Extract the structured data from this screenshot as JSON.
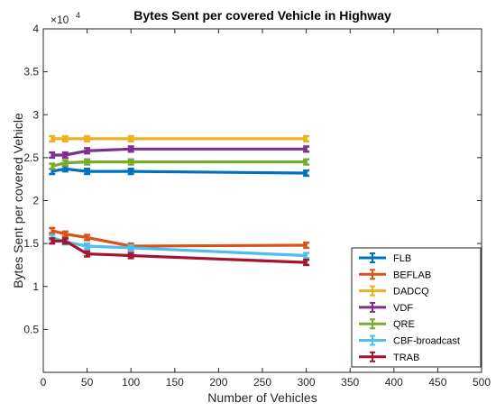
{
  "chart_data": {
    "type": "line",
    "title": "Bytes Sent per covered Vehicle in Highway",
    "xlabel": "Number of Vehicles",
    "ylabel": "Bytes Sent per covered Vehicle",
    "y_multiplier": {
      "base": "×10",
      "exponent": "4"
    },
    "xlim": [
      0,
      500
    ],
    "ylim": [
      0,
      4
    ],
    "xticks": [
      0,
      50,
      100,
      150,
      200,
      250,
      300,
      350,
      400,
      450,
      500
    ],
    "yticks": [
      0.5,
      1,
      1.5,
      2,
      2.5,
      3,
      3.5,
      4
    ],
    "ytick_labels": [
      "0.5",
      "1",
      "1.5",
      "2",
      "2.5",
      "3",
      "3.5",
      "4"
    ],
    "error_bars": true,
    "grid": false,
    "legend_position": "bottom-right",
    "x": [
      10,
      25,
      50,
      100,
      300
    ],
    "series": [
      {
        "name": "FLB",
        "color": "#0072BD",
        "values": [
          2.34,
          2.37,
          2.34,
          2.34,
          2.32
        ]
      },
      {
        "name": "BEFLAB",
        "color": "#D95319",
        "values": [
          1.65,
          1.61,
          1.57,
          1.47,
          1.48
        ]
      },
      {
        "name": "DADCQ",
        "color": "#EDB120",
        "values": [
          2.72,
          2.72,
          2.72,
          2.72,
          2.72
        ]
      },
      {
        "name": "VDF",
        "color": "#7E2F8E",
        "values": [
          2.53,
          2.53,
          2.58,
          2.6,
          2.6
        ]
      },
      {
        "name": "QRE",
        "color": "#77AC30",
        "values": [
          2.4,
          2.44,
          2.45,
          2.45,
          2.45
        ]
      },
      {
        "name": "CBF-broadcast",
        "color": "#4DBEEE",
        "values": [
          1.57,
          1.52,
          1.47,
          1.45,
          1.36
        ]
      },
      {
        "name": "TRAB",
        "color": "#A2142F",
        "values": [
          1.53,
          1.53,
          1.38,
          1.36,
          1.28
        ]
      }
    ]
  }
}
